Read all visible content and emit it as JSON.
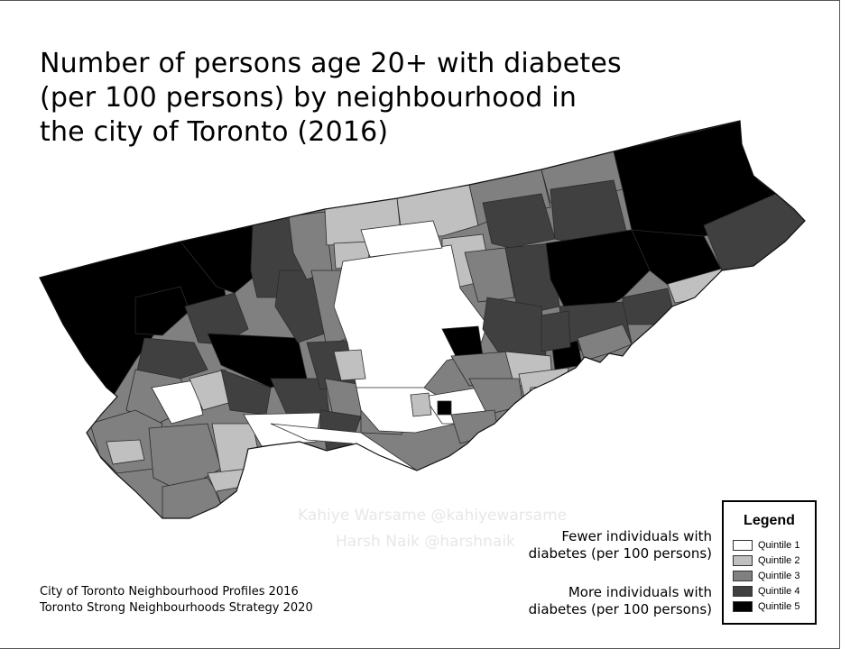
{
  "title_lines": [
    "Number of persons age 20+ with diabetes",
    "(per 100 persons) by neighbourhood in",
    "the city of Toronto (2016)"
  ],
  "watermark": {
    "line1": "Kahiye Warsame @kahiyewarsame",
    "line2": "Harsh Naik @harshnaik"
  },
  "legend": {
    "title": "Legend",
    "fewer_note": [
      "Fewer individuals with",
      "diabetes (per 100 persons)"
    ],
    "more_note": [
      "More individuals with",
      "diabetes (per 100 persons)"
    ],
    "items": [
      {
        "label": "Quintile 1",
        "color": "#ffffff"
      },
      {
        "label": "Quintile 2",
        "color": "#c0c0c0"
      },
      {
        "label": "Quintile 3",
        "color": "#808080"
      },
      {
        "label": "Quintile 4",
        "color": "#404040"
      },
      {
        "label": "Quintile 5",
        "color": "#000000"
      }
    ]
  },
  "sources": [
    "City of Toronto Neighbourhood Profiles 2016",
    "Toronto Strong Neighbourhoods Strategy 2020"
  ]
}
